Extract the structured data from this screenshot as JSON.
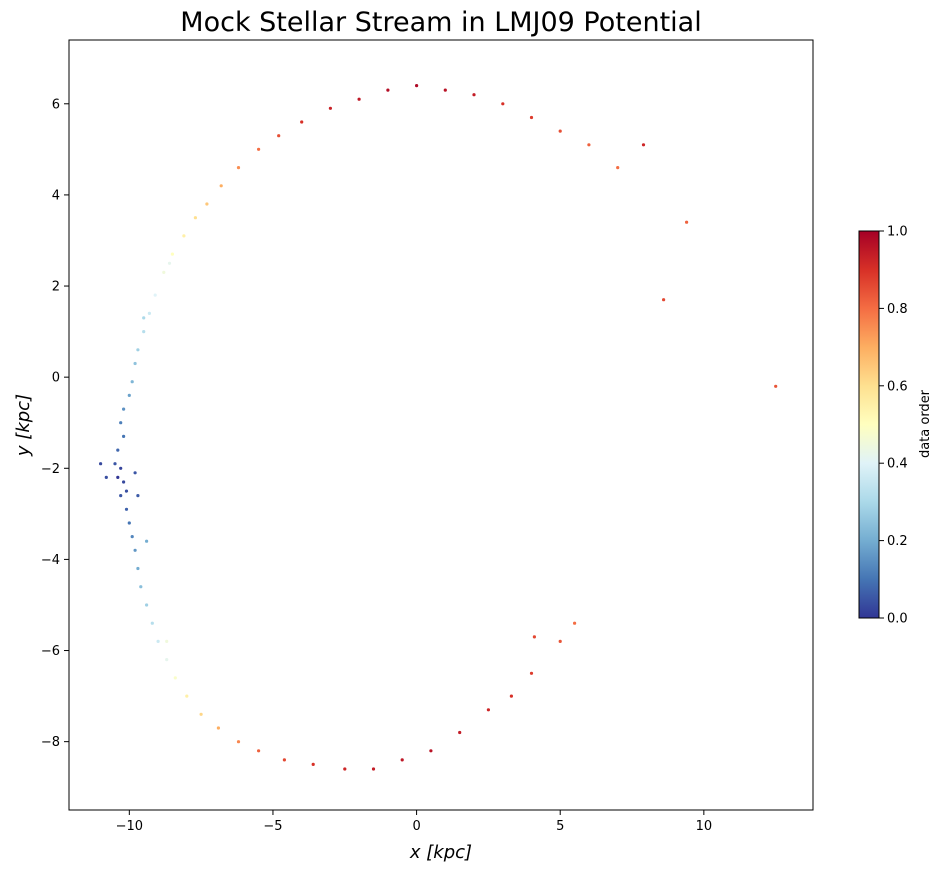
{
  "chart_data": {
    "type": "scatter",
    "title": "Mock Stellar Stream in LMJ09 Potential",
    "xlabel": "x [kpc]",
    "ylabel": "y [kpc]",
    "xlim": [
      -12.1,
      13.8
    ],
    "ylim": [
      -9.5,
      7.4
    ],
    "x_ticks": [
      -10,
      -5,
      0,
      5,
      10
    ],
    "y_ticks": [
      -8,
      -6,
      -4,
      -2,
      0,
      2,
      4,
      6
    ],
    "x_tick_labels": [
      "−10",
      "−5",
      "0",
      "5",
      "10"
    ],
    "y_tick_labels": [
      "−8",
      "−6",
      "−4",
      "−2",
      "0",
      "2",
      "4",
      "6"
    ],
    "grid": false,
    "colormap": "RdYlBu_r",
    "colorbar": {
      "label": "data order",
      "range": [
        0.0,
        1.0
      ],
      "ticks": [
        0.0,
        0.2,
        0.4,
        0.6,
        0.8,
        1.0
      ],
      "tick_labels": [
        "0.0",
        "0.2",
        "0.4",
        "0.6",
        "0.8",
        "1.0"
      ],
      "colors": [
        "#313695",
        "#4575b4",
        "#74add1",
        "#abd9e9",
        "#e0f3f8",
        "#ffffbf",
        "#fee090",
        "#fdae61",
        "#f46d43",
        "#d73027",
        "#a50026"
      ]
    },
    "series": [
      {
        "points": [
          [
            -10.3,
            -2.0,
            0.02
          ],
          [
            -10.4,
            -2.2,
            0.0
          ],
          [
            -10.2,
            -2.3,
            0.03
          ],
          [
            -10.5,
            -1.9,
            0.05
          ],
          [
            -10.1,
            -2.5,
            0.04
          ],
          [
            -10.3,
            -2.6,
            0.05
          ],
          [
            -10.4,
            -1.6,
            0.08
          ],
          [
            -10.2,
            -1.3,
            0.1
          ],
          [
            -10.3,
            -1.0,
            0.12
          ],
          [
            -10.1,
            -2.9,
            0.07
          ],
          [
            -10.0,
            -3.2,
            0.1
          ],
          [
            -9.9,
            -3.5,
            0.13
          ],
          [
            -9.8,
            -3.8,
            0.16
          ],
          [
            -9.7,
            -4.2,
            0.2
          ],
          [
            -10.2,
            -0.7,
            0.15
          ],
          [
            -10.0,
            -0.4,
            0.18
          ],
          [
            -9.9,
            -0.1,
            0.22
          ],
          [
            -9.8,
            0.3,
            0.25
          ],
          [
            -9.7,
            0.6,
            0.28
          ],
          [
            -9.5,
            1.0,
            0.32
          ],
          [
            -9.3,
            1.4,
            0.36
          ],
          [
            -9.1,
            1.8,
            0.4
          ],
          [
            -8.8,
            2.3,
            0.45
          ],
          [
            -8.5,
            2.7,
            0.5
          ],
          [
            -8.1,
            3.1,
            0.55
          ],
          [
            -7.7,
            3.5,
            0.6
          ],
          [
            -7.3,
            3.8,
            0.65
          ],
          [
            -6.8,
            4.2,
            0.7
          ],
          [
            -6.2,
            4.6,
            0.75
          ],
          [
            -5.5,
            5.0,
            0.8
          ],
          [
            -4.8,
            5.3,
            0.85
          ],
          [
            -4.0,
            5.6,
            0.9
          ],
          [
            -3.0,
            5.9,
            0.93
          ],
          [
            -2.0,
            6.1,
            0.95
          ],
          [
            -1.0,
            6.3,
            0.97
          ],
          [
            0.0,
            6.4,
            0.98
          ],
          [
            1.0,
            6.3,
            0.96
          ],
          [
            2.0,
            6.2,
            0.94
          ],
          [
            3.0,
            6.0,
            0.9
          ],
          [
            4.0,
            5.7,
            0.88
          ],
          [
            5.0,
            5.4,
            0.85
          ],
          [
            6.0,
            5.1,
            0.82
          ],
          [
            7.0,
            4.6,
            0.8
          ],
          [
            7.9,
            5.1,
            0.92
          ],
          [
            9.4,
            3.4,
            0.82
          ],
          [
            8.6,
            1.7,
            0.86
          ],
          [
            12.5,
            -0.2,
            0.84
          ],
          [
            -9.6,
            -4.6,
            0.24
          ],
          [
            -9.4,
            -5.0,
            0.28
          ],
          [
            -9.2,
            -5.4,
            0.32
          ],
          [
            -9.0,
            -5.8,
            0.36
          ],
          [
            -8.7,
            -6.2,
            0.42
          ],
          [
            -8.4,
            -6.6,
            0.48
          ],
          [
            -8.0,
            -7.0,
            0.55
          ],
          [
            -7.5,
            -7.4,
            0.62
          ],
          [
            -6.9,
            -7.7,
            0.7
          ],
          [
            -6.2,
            -8.0,
            0.76
          ],
          [
            -5.5,
            -8.2,
            0.82
          ],
          [
            -4.6,
            -8.4,
            0.86
          ],
          [
            -3.6,
            -8.5,
            0.9
          ],
          [
            -2.5,
            -8.6,
            0.92
          ],
          [
            -1.5,
            -8.6,
            0.94
          ],
          [
            -0.5,
            -8.4,
            0.95
          ],
          [
            0.5,
            -8.2,
            0.96
          ],
          [
            1.5,
            -7.8,
            0.94
          ],
          [
            2.5,
            -7.3,
            0.92
          ],
          [
            3.3,
            -7.0,
            0.9
          ],
          [
            4.0,
            -6.5,
            0.88
          ],
          [
            4.1,
            -5.7,
            0.86
          ],
          [
            5.0,
            -5.8,
            0.84
          ],
          [
            5.5,
            -5.4,
            0.8
          ],
          [
            -11.0,
            -1.9,
            0.03
          ],
          [
            -10.8,
            -2.2,
            0.04
          ],
          [
            -9.7,
            -2.6,
            0.06
          ],
          [
            -9.8,
            -2.1,
            0.05
          ],
          [
            -9.5,
            1.3,
            0.3
          ],
          [
            -8.6,
            2.5,
            0.42
          ],
          [
            -9.4,
            -3.6,
            0.2
          ],
          [
            -8.7,
            -5.8,
            0.45
          ]
        ]
      }
    ]
  }
}
